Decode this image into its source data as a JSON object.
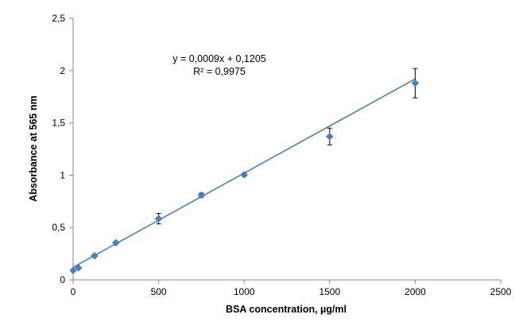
{
  "chart_data": {
    "type": "scatter",
    "title": "",
    "xlabel": "BSA concentration, µg/ml",
    "ylabel": "Absorbance at 565 nm",
    "xlim": [
      0,
      2500
    ],
    "ylim": [
      0,
      2.5
    ],
    "x_ticks": [
      0,
      500,
      1000,
      1500,
      2000,
      2500
    ],
    "x_tick_labels": [
      "0",
      "500",
      "1000",
      "1500",
      "2000",
      "2500"
    ],
    "y_ticks": [
      0,
      0.5,
      1,
      1.5,
      2,
      2.5
    ],
    "y_tick_labels": [
      "0",
      "0,5",
      "1",
      "1,5",
      "2",
      "2,5"
    ],
    "grid": false,
    "legend": "none",
    "series": [
      {
        "x": [
          0,
          31.25,
          125,
          250,
          500,
          750,
          1000,
          1500,
          2000
        ],
        "y": [
          0.09,
          0.115,
          0.23,
          0.355,
          0.585,
          0.81,
          1.005,
          1.37,
          1.88
        ],
        "error": [
          0.005,
          0.005,
          0.01,
          0.01,
          0.05,
          0.02,
          0.015,
          0.08,
          0.14
        ],
        "color": "#4a7ebb"
      }
    ],
    "trendline": {
      "slope": 0.0009,
      "intercept": 0.1205,
      "x_range": [
        0,
        2000
      ],
      "color": "#4a7ebb",
      "equation_label": "y = 0,0009x + 0,1205",
      "r2_label": "R² = 0,9975"
    },
    "error_bar_color": "#000000"
  }
}
